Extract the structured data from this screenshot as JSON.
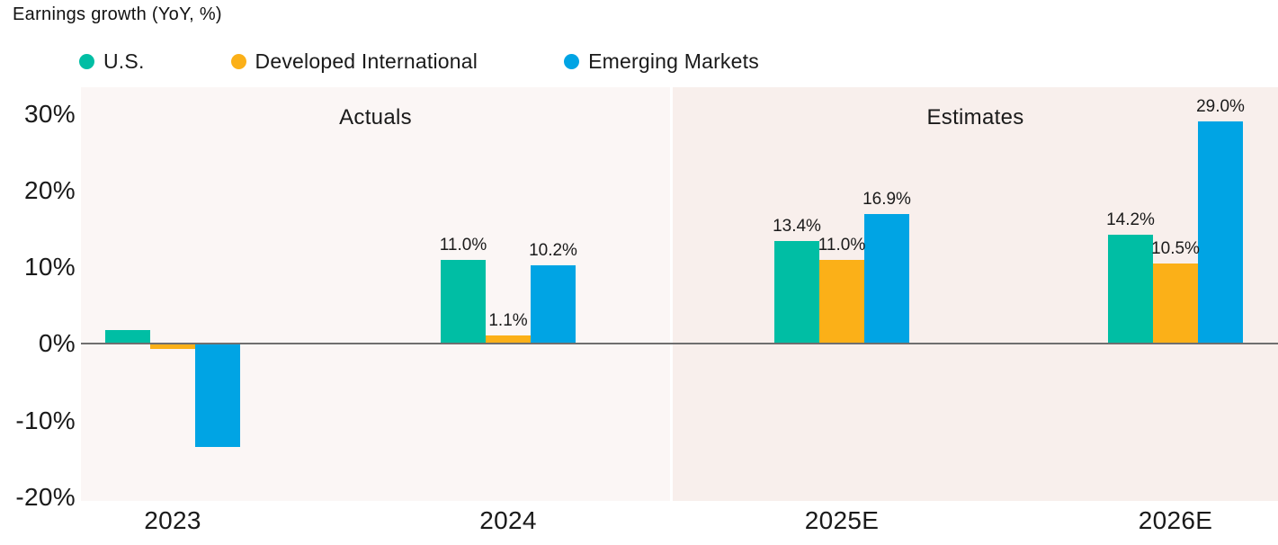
{
  "title": "Earnings growth (YoY, %)",
  "legend": [
    {
      "label": "U.S.",
      "color": "#00BEA4"
    },
    {
      "label": "Developed International",
      "color": "#FBB018"
    },
    {
      "label": "Emerging Markets",
      "color": "#00A4E4"
    }
  ],
  "chart_data": {
    "type": "bar",
    "title": "Earnings growth (YoY, %)",
    "categories": [
      "2023",
      "2024",
      "2025E",
      "2026E"
    ],
    "series": [
      {
        "name": "U.S.",
        "color": "#00BEA4",
        "values": [
          1.8,
          11.0,
          13.4,
          14.2
        ],
        "data_labels": [
          "",
          "11.0%",
          "13.4%",
          "14.2%"
        ]
      },
      {
        "name": "Developed International",
        "color": "#FBB018",
        "values": [
          -0.7,
          1.1,
          11.0,
          10.5
        ],
        "data_labels": [
          "",
          "1.1%",
          "11.0%",
          "10.5%"
        ]
      },
      {
        "name": "Emerging Markets",
        "color": "#00A4E4",
        "values": [
          -13.5,
          10.2,
          16.9,
          29.0
        ],
        "data_labels": [
          "",
          "10.2%",
          "16.9%",
          "29.0%"
        ]
      }
    ],
    "y_ticks": [
      "30%",
      "20%",
      "10%",
      "0%",
      "-10%",
      "-20%"
    ],
    "ylim": [
      -20.5,
      33.5
    ],
    "regions": [
      {
        "label": "Actuals",
        "categories": [
          "2023",
          "2024"
        ],
        "bg": "#FBF6F5"
      },
      {
        "label": "Estimates",
        "categories": [
          "2025E",
          "2026E"
        ],
        "bg": "#F8EFEC"
      }
    ],
    "grid": false,
    "legend_position": "top",
    "zero_line_color": "#6f6f6f"
  }
}
